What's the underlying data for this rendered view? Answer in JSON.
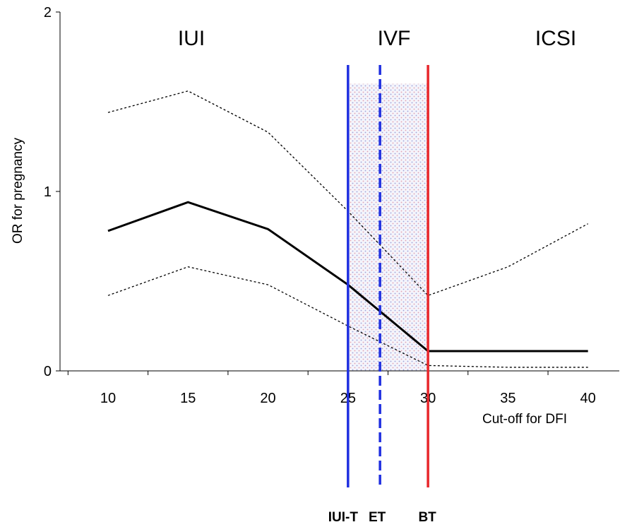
{
  "chart_data": {
    "type": "line",
    "xlabel": "Cut-off for DFI",
    "ylabel": "OR for pregnancy",
    "xlim": [
      7,
      42
    ],
    "ylim": [
      0,
      2
    ],
    "x_ticks": [
      "10",
      "15",
      "20",
      "25",
      "30",
      "35",
      "40"
    ],
    "y_ticks": [
      "0",
      "1",
      "2"
    ],
    "series": [
      {
        "role": "estimate",
        "style": "solid",
        "color": "#000000",
        "x": [
          10,
          15,
          20,
          25,
          30,
          35,
          40
        ],
        "y": [
          0.78,
          0.94,
          0.79,
          0.48,
          0.11,
          0.11,
          0.11
        ]
      },
      {
        "role": "upper-ci",
        "style": "dotted",
        "color": "#000000",
        "x": [
          10,
          15,
          20,
          25,
          30,
          35,
          40
        ],
        "y": [
          1.44,
          1.56,
          1.33,
          0.89,
          0.42,
          0.58,
          0.82
        ]
      },
      {
        "role": "lower-ci",
        "style": "dotted",
        "color": "#000000",
        "x": [
          10,
          15,
          20,
          25,
          30,
          35,
          40
        ],
        "y": [
          0.42,
          0.58,
          0.48,
          0.25,
          0.03,
          0.02,
          0.02
        ]
      }
    ],
    "shaded_band": {
      "x": [
        25,
        30
      ],
      "y": [
        0,
        1.6
      ]
    },
    "regions": [
      "IUI",
      "IVF",
      "ICSI"
    ],
    "thresholds": [
      {
        "label": "IUI-T",
        "x": 25,
        "style": "solid",
        "color": "#1f2fe0"
      },
      {
        "label": "ET",
        "x": 27,
        "style": "dashed",
        "color": "#1f2fe0"
      },
      {
        "label": "BT",
        "x": 30,
        "style": "solid",
        "color": "#e8262b"
      }
    ]
  }
}
